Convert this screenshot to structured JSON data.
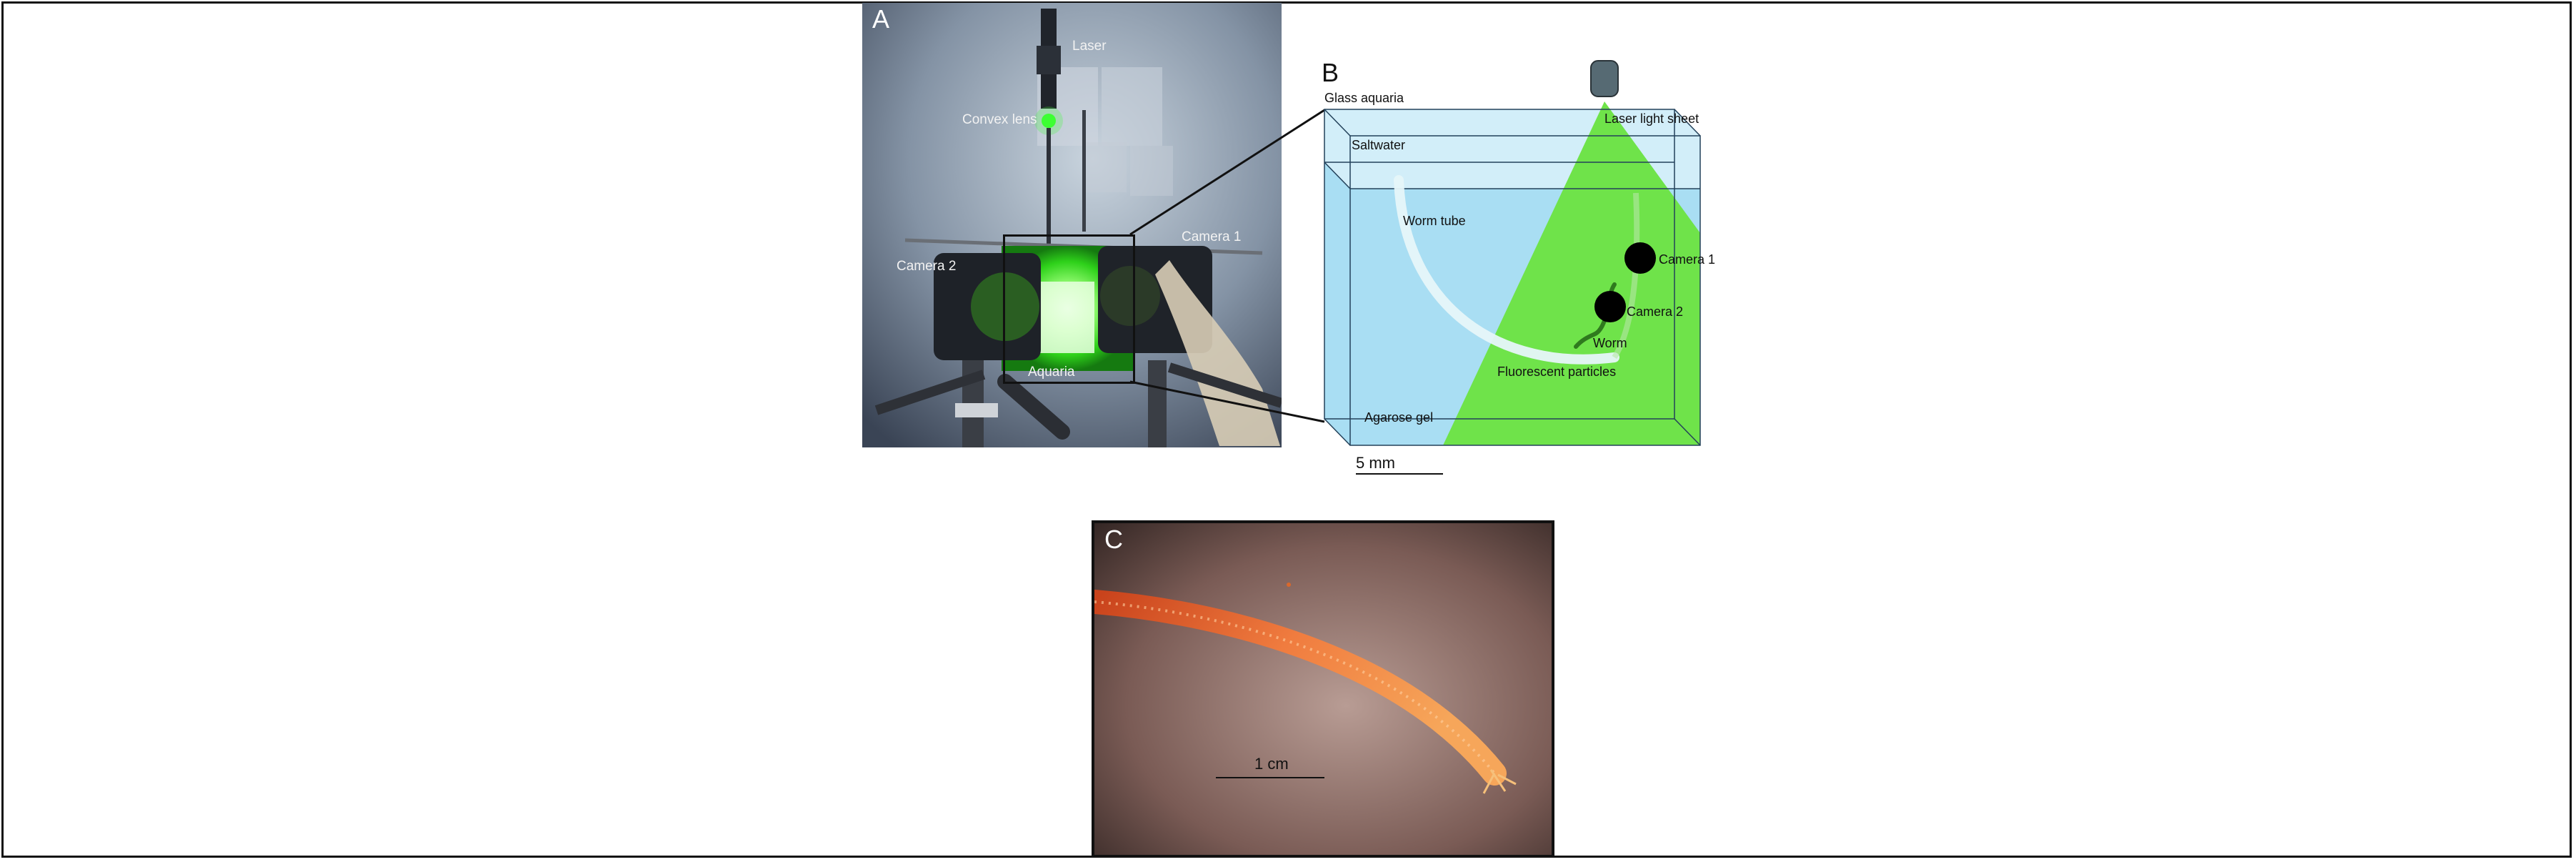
{
  "panel_a": {
    "letter": "A",
    "labels": {
      "laser": "Laser",
      "convex_lens": "Convex lens",
      "camera_1": "Camera 1",
      "camera_2": "Camera 2",
      "aquaria": "Aquaria"
    }
  },
  "panel_b": {
    "letter": "B",
    "labels": {
      "glass_aquaria": "Glass aquaria",
      "laser_light_sheet": "Laser light sheet",
      "saltwater": "Saltwater",
      "worm_tube": "Worm tube",
      "camera_1": "Camera 1",
      "camera_2": "Camera 2",
      "worm": "Worm",
      "fluorescent_particles": "Fluorescent particles",
      "agarose_gel": "Agarose gel"
    },
    "scale_bar": "5 mm",
    "colors": {
      "gel": "#a9def3",
      "water": "#d6f0fa",
      "laser": "#6fe34a"
    }
  },
  "panel_c": {
    "letter": "C",
    "scale_bar": "1 cm"
  }
}
